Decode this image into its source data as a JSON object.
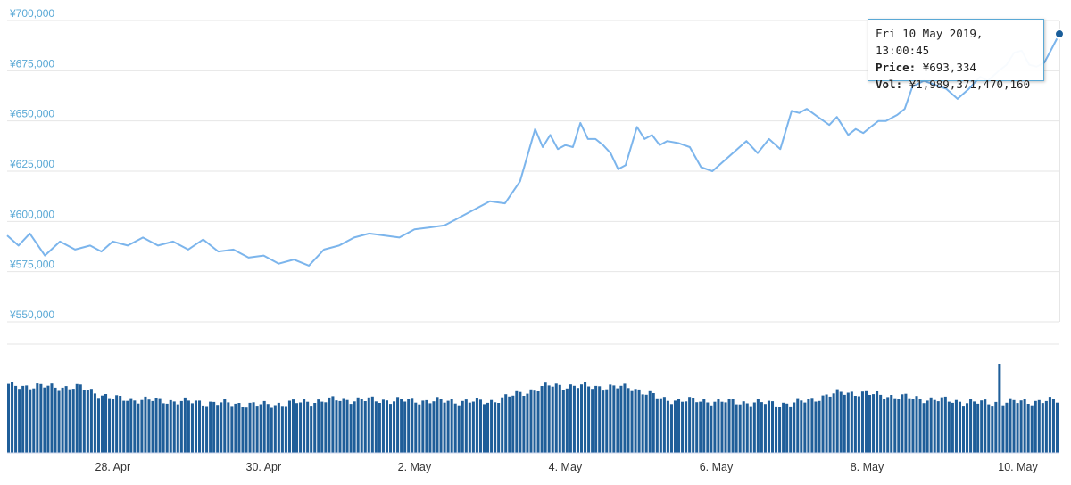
{
  "chart_data": [
    {
      "type": "line",
      "ylim": [
        550000,
        700000
      ],
      "yticks": [
        "¥700,000",
        "¥675,000",
        "¥650,000",
        "¥625,000",
        "¥600,000",
        "¥575,000",
        "¥550,000"
      ],
      "ytick_values": [
        700000,
        675000,
        650000,
        625000,
        600000,
        575000,
        550000
      ],
      "xlim_days": [
        26.6,
        40.55
      ],
      "xticks": [
        "28. Apr",
        "30. Apr",
        "2. May",
        "4. May",
        "6. May",
        "8. May",
        "10. May"
      ],
      "xtick_days": [
        28,
        30,
        32,
        34,
        36,
        38,
        40
      ],
      "grid": true,
      "line_color": "#7cb5ec",
      "series": [
        {
          "x_days": [
            26.6,
            26.75,
            26.9,
            27.1,
            27.3,
            27.5,
            27.7,
            27.85,
            28.0,
            28.2,
            28.4,
            28.6,
            28.8,
            29.0,
            29.2,
            29.4,
            29.6,
            29.8,
            30.0,
            30.2,
            30.4,
            30.6,
            30.8,
            31.0,
            31.2,
            31.4,
            31.6,
            31.8,
            32.0,
            32.2,
            32.4,
            32.6,
            32.8,
            33.0,
            33.2,
            33.4,
            33.6,
            33.7,
            33.8,
            33.9,
            34.0,
            34.1,
            34.2,
            34.3,
            34.4,
            34.5,
            34.6,
            34.7,
            34.8,
            34.95,
            35.05,
            35.15,
            35.25,
            35.35,
            35.5,
            35.65,
            35.8,
            35.95,
            36.1,
            36.25,
            36.4,
            36.55,
            36.7,
            36.85,
            37.0,
            37.1,
            37.2,
            37.35,
            37.5,
            37.6,
            37.75,
            37.85,
            37.95,
            38.05,
            38.15,
            38.25,
            38.4,
            38.5,
            38.6,
            38.75,
            38.9,
            39.05,
            39.2,
            39.35,
            39.5,
            39.6,
            39.75,
            39.85,
            39.95,
            40.05,
            40.15,
            40.25,
            40.35,
            40.45,
            40.55
          ],
          "y": [
            593000,
            588000,
            594000,
            583000,
            590000,
            586000,
            588000,
            585000,
            590000,
            588000,
            592000,
            588000,
            590000,
            586000,
            591000,
            585000,
            586000,
            582000,
            583000,
            579000,
            581000,
            578000,
            586000,
            588000,
            592000,
            594000,
            593000,
            592000,
            596000,
            597000,
            598000,
            602000,
            606000,
            610000,
            609000,
            620000,
            646000,
            637000,
            643000,
            636000,
            638000,
            637000,
            649000,
            641000,
            641000,
            638000,
            634000,
            626000,
            628000,
            647000,
            641000,
            643000,
            638000,
            640000,
            639000,
            637000,
            627000,
            625000,
            630000,
            635000,
            640000,
            634000,
            641000,
            636000,
            655000,
            654000,
            656000,
            652000,
            648000,
            652000,
            643000,
            646000,
            644000,
            647000,
            650000,
            650000,
            653000,
            656000,
            667000,
            670000,
            668000,
            666000,
            661000,
            666000,
            672000,
            670000,
            675000,
            678000,
            684000,
            685000,
            678000,
            677000,
            679000,
            686000,
            693334
          ]
        }
      ]
    },
    {
      "type": "bar",
      "bar_color": "#1f5e99",
      "volume_note_units": "relative volume level (0-1 of panel height)",
      "x_days_start": 26.6,
      "x_days_end": 40.55,
      "bar_count": 292,
      "profile_days": [
        26.6,
        27.6,
        28.0,
        30.0,
        31.0,
        33.0,
        33.8,
        34.9,
        35.3,
        37.0,
        37.7,
        38.7,
        39.5,
        40.55
      ],
      "profile_levels": [
        0.62,
        0.6,
        0.5,
        0.44,
        0.49,
        0.47,
        0.62,
        0.6,
        0.49,
        0.45,
        0.56,
        0.5,
        0.46,
        0.48
      ],
      "spike_day": 39.78,
      "spike_level": 0.82
    },
    {
      "type": "table",
      "tooltip": {
        "date": "Fri 10 May 2019, 13:00:45",
        "price_label": "Price:",
        "price_value": "¥693,334",
        "vol_label": "Vol:",
        "vol_value": "¥1,989,371,470,160"
      }
    }
  ]
}
